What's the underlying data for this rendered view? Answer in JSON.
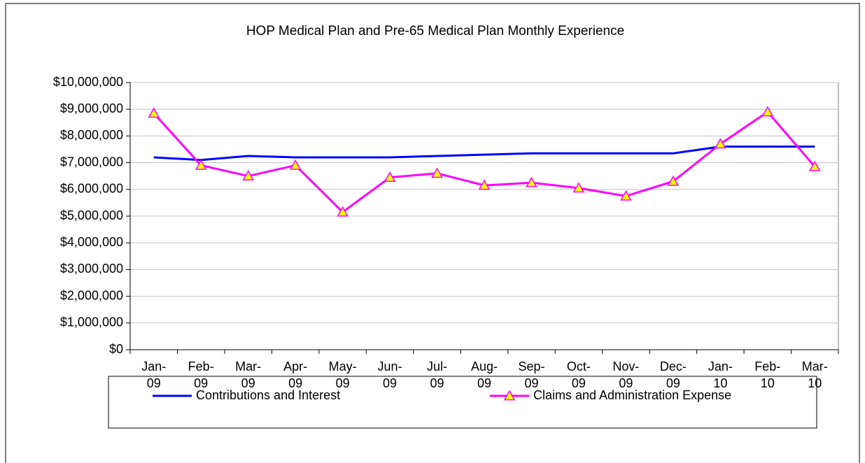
{
  "chart_data": {
    "type": "line",
    "title": "HOP Medical Plan and Pre-65 Medical Plan Monthly Experience",
    "categories": [
      "Jan-09",
      "Feb-09",
      "Mar-09",
      "Apr-09",
      "May-09",
      "Jun-09",
      "Jul-09",
      "Aug-09",
      "Sep-09",
      "Oct-09",
      "Nov-09",
      "Dec-09",
      "Jan-10",
      "Feb-10",
      "Mar-10"
    ],
    "series": [
      {
        "name": "Contributions and Interest",
        "color": "#0000ff",
        "values": [
          7200000,
          7100000,
          7250000,
          7200000,
          7200000,
          7200000,
          7250000,
          7300000,
          7350000,
          7350000,
          7350000,
          7350000,
          7600000,
          7600000,
          7600000
        ]
      },
      {
        "name": "Claims and Administration Expense",
        "color": "#ff00ff",
        "marker": "triangle",
        "marker_color": "#ffff00",
        "values": [
          8850000,
          6900000,
          6500000,
          6900000,
          5150000,
          6450000,
          6600000,
          6150000,
          6250000,
          6050000,
          5750000,
          6300000,
          7700000,
          8900000,
          6850000
        ]
      }
    ],
    "ylim": [
      0,
      10000000
    ],
    "yticks": [
      {
        "value": 0,
        "label": "$0"
      },
      {
        "value": 1000000,
        "label": "$1,000,000"
      },
      {
        "value": 2000000,
        "label": "$2,000,000"
      },
      {
        "value": 3000000,
        "label": "$3,000,000"
      },
      {
        "value": 4000000,
        "label": "$4,000,000"
      },
      {
        "value": 5000000,
        "label": "$5,000,000"
      },
      {
        "value": 6000000,
        "label": "$6,000,000"
      },
      {
        "value": 7000000,
        "label": "$7,000,000"
      },
      {
        "value": 8000000,
        "label": "$8,000,000"
      },
      {
        "value": 9000000,
        "label": "$9,000,000"
      },
      {
        "value": 10000000,
        "label": "$10,000,000"
      }
    ],
    "grid": true,
    "legend": "bottom"
  }
}
